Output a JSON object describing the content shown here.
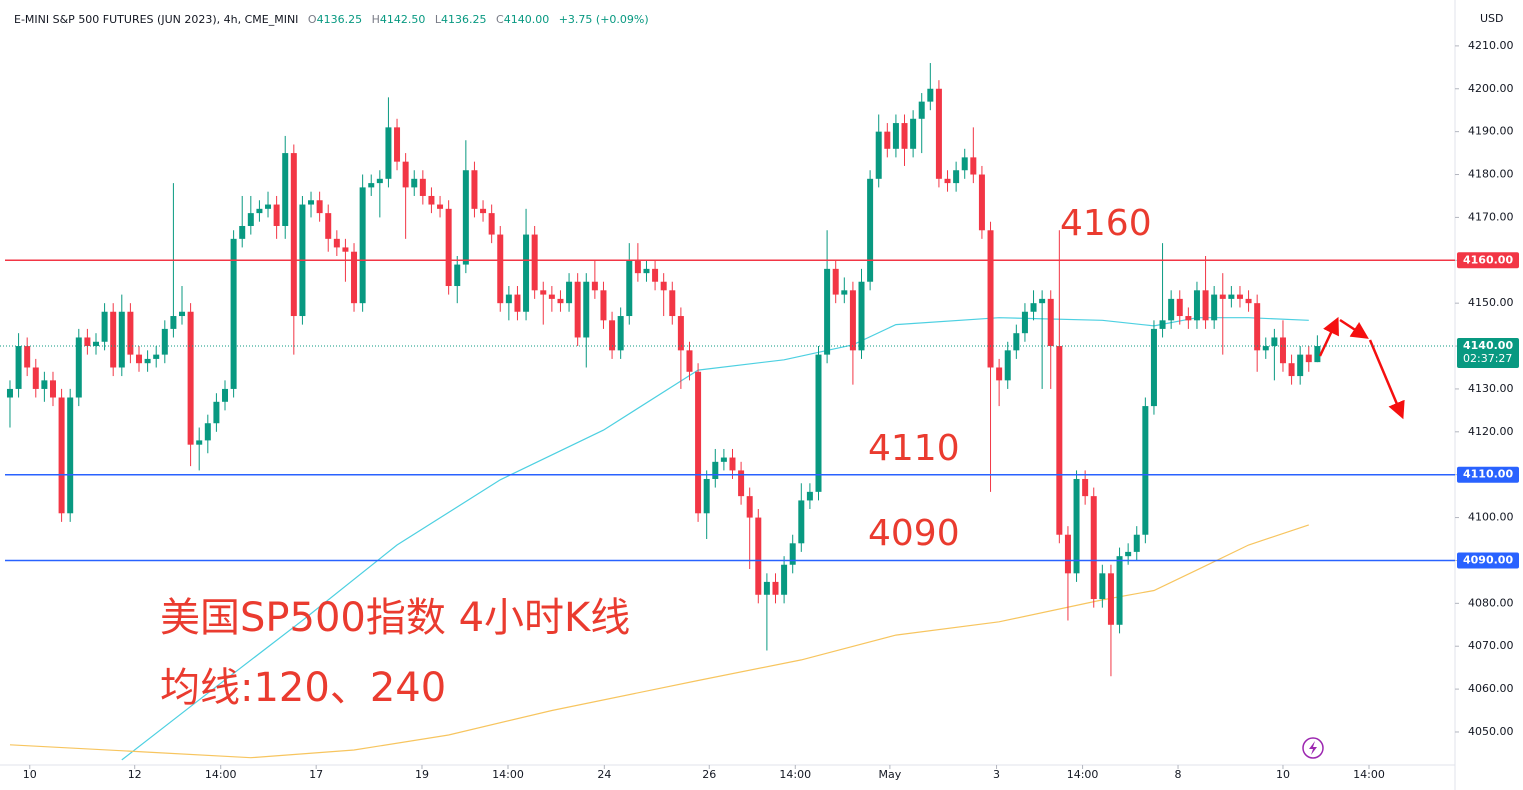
{
  "chart_data": {
    "type": "candlestick",
    "header": {
      "title": "E-MINI S&P 500 FUTURES (JUN 2023), 4h, CME_MINI",
      "ohlc": [
        {
          "label": "O",
          "value": "4136.25"
        },
        {
          "label": "H",
          "value": "4142.50"
        },
        {
          "label": "L",
          "value": "4136.25"
        },
        {
          "label": "C",
          "value": "4140.00"
        }
      ],
      "change": "+3.75 (+0.09%)"
    },
    "currency": "USD",
    "up_color": "#089981",
    "down_color": "#f23645",
    "open": [
      4128,
      4130,
      4140,
      4135,
      4130,
      4132,
      4128,
      4101,
      4128,
      4142,
      4140,
      4141,
      4148,
      4135,
      4148,
      4138,
      4136,
      4137,
      4138,
      4144,
      4147,
      4148,
      4117,
      4118,
      4122,
      4127,
      4130,
      4165,
      4168,
      4171,
      4172,
      4173,
      4168,
      4185,
      4147,
      4173,
      4174,
      4171,
      4165,
      4163,
      4162,
      4150,
      4177,
      4178,
      4179,
      4191,
      4183,
      4177,
      4179,
      4175,
      4173,
      4172,
      4154,
      4159,
      4181,
      4172,
      4171,
      4166,
      4150,
      4152,
      4148,
      4166,
      4153,
      4152,
      4151,
      4150,
      4155,
      4142,
      4155,
      4153,
      4146,
      4139,
      4147,
      4160,
      4157,
      4158,
      4155,
      4153,
      4147,
      4139,
      4134,
      4101,
      4109,
      4113,
      4114,
      4111,
      4105,
      4100,
      4082,
      4085,
      4082,
      4089,
      4094,
      4104,
      4106,
      4138,
      4158,
      4152,
      4153,
      4139,
      4155,
      4179,
      4190,
      4186,
      4192,
      4186,
      4193,
      4197,
      4200,
      4179,
      4178,
      4181,
      4184,
      4180,
      4167,
      4135,
      4132,
      4139,
      4143,
      4148,
      4150,
      4151,
      4140,
      4096,
      4087,
      4109,
      4105,
      4081,
      4087,
      4075,
      4091,
      4092,
      4096,
      4126,
      4144,
      4146,
      4151,
      4147,
      4146,
      4153,
      4146,
      4152,
      4151,
      4152,
      4151,
      4150,
      4139,
      4140,
      4142,
      4136,
      4133,
      4138,
      4136.25
    ],
    "high": [
      4132,
      4143,
      4142,
      4137,
      4134,
      4134,
      4130,
      4130,
      4144,
      4144,
      4143,
      4150,
      4150,
      4152,
      4150,
      4140,
      4139,
      4140,
      4146,
      4178,
      4154,
      4150,
      4121,
      4124,
      4129,
      4132,
      4167,
      4175,
      4175,
      4174,
      4176,
      4175,
      4189,
      4187,
      4175,
      4176,
      4176,
      4173,
      4167,
      4165,
      4164,
      4180,
      4180,
      4181,
      4198,
      4193,
      4185,
      4181,
      4181,
      4177,
      4175,
      4174,
      4161,
      4188,
      4183,
      4174,
      4173,
      4168,
      4154,
      4154,
      4172,
      4168,
      4155,
      4154,
      4153,
      4157,
      4157,
      4157,
      4160,
      4155,
      4148,
      4149,
      4164,
      4164,
      4160,
      4160,
      4157,
      4155,
      4149,
      4141,
      4136,
      4111,
      4116,
      4116,
      4116,
      4113,
      4107,
      4102,
      4087,
      4087,
      4091,
      4096,
      4108,
      4108,
      4140,
      4167,
      4160,
      4156,
      4155,
      4158,
      4181,
      4194,
      4192,
      4194,
      4194,
      4195,
      4199,
      4206,
      4202,
      4181,
      4183,
      4186,
      4191,
      4182,
      4169,
      4137,
      4141,
      4145,
      4150,
      4153,
      4153,
      4153,
      4167,
      4098,
      4111,
      4111,
      4107,
      4089,
      4089,
      4093,
      4094,
      4098,
      4128,
      4146,
      4164,
      4153,
      4153,
      4149,
      4155,
      4161,
      4154,
      4157,
      4154,
      4154,
      4153,
      4152,
      4142,
      4144,
      4146,
      4138,
      4140,
      4140,
      4142.5
    ],
    "low": [
      4121,
      4128,
      4133,
      4128,
      4127,
      4126,
      4099,
      4099,
      4126,
      4138,
      4138,
      4139,
      4133,
      4133,
      4136,
      4134,
      4134,
      4135,
      4136,
      4142,
      4145,
      4112,
      4111,
      4115,
      4120,
      4125,
      4128,
      4163,
      4166,
      4169,
      4170,
      4165,
      4165,
      4138,
      4145,
      4170,
      4169,
      4162,
      4161,
      4155,
      4148,
      4148,
      4175,
      4170,
      4177,
      4181,
      4165,
      4175,
      4173,
      4171,
      4170,
      4152,
      4150,
      4157,
      4170,
      4169,
      4164,
      4148,
      4146,
      4146,
      4146,
      4151,
      4145,
      4148,
      4148,
      4148,
      4140,
      4135,
      4151,
      4144,
      4137,
      4137,
      4145,
      4155,
      4155,
      4153,
      4147,
      4145,
      4130,
      4132,
      4099,
      4095,
      4107,
      4111,
      4109,
      4103,
      4088,
      4080,
      4069,
      4080,
      4080,
      4087,
      4092,
      4102,
      4104,
      4136,
      4150,
      4150,
      4131,
      4137,
      4153,
      4177,
      4184,
      4184,
      4182,
      4184,
      4185,
      4195,
      4177,
      4176,
      4176,
      4179,
      4178,
      4165,
      4106,
      4126,
      4130,
      4137,
      4141,
      4146,
      4130,
      4130,
      4094,
      4076,
      4085,
      4103,
      4079,
      4079,
      4063,
      4073,
      4089,
      4090,
      4094,
      4124,
      4142,
      4144,
      4145,
      4144,
      4144,
      4144,
      4144,
      4138,
      4149,
      4149,
      4148,
      4134,
      4137,
      4132,
      4134,
      4131,
      4131,
      4134,
      4136.25
    ],
    "close": [
      4130,
      4140,
      4135,
      4130,
      4132,
      4128,
      4101,
      4128,
      4142,
      4140,
      4141,
      4148,
      4135,
      4148,
      4138,
      4136,
      4137,
      4138,
      4144,
      4147,
      4148,
      4117,
      4118,
      4122,
      4127,
      4130,
      4165,
      4168,
      4171,
      4172,
      4173,
      4168,
      4185,
      4147,
      4173,
      4174,
      4171,
      4165,
      4163,
      4162,
      4150,
      4177,
      4178,
      4179,
      4191,
      4183,
      4177,
      4179,
      4175,
      4173,
      4172,
      4154,
      4159,
      4181,
      4172,
      4171,
      4166,
      4150,
      4152,
      4148,
      4166,
      4153,
      4152,
      4151,
      4150,
      4155,
      4142,
      4155,
      4153,
      4146,
      4139,
      4147,
      4160,
      4157,
      4158,
      4155,
      4153,
      4147,
      4139,
      4134,
      4101,
      4109,
      4113,
      4114,
      4111,
      4105,
      4100,
      4082,
      4085,
      4082,
      4089,
      4094,
      4104,
      4106,
      4138,
      4158,
      4152,
      4153,
      4139,
      4155,
      4179,
      4190,
      4186,
      4192,
      4186,
      4193,
      4197,
      4200,
      4179,
      4178,
      4181,
      4184,
      4180,
      4167,
      4135,
      4132,
      4139,
      4143,
      4148,
      4150,
      4151,
      4140,
      4096,
      4087,
      4109,
      4105,
      4081,
      4087,
      4075,
      4091,
      4092,
      4096,
      4126,
      4144,
      4146,
      4151,
      4147,
      4146,
      4153,
      4146,
      4152,
      4151,
      4152,
      4151,
      4150,
      4139,
      4140,
      4142,
      4136,
      4133,
      4138,
      4136.25,
      4140
    ],
    "moving_averages": [
      {
        "color": "#4dd0e1",
        "x": [
          13,
          22,
          34,
          45,
          57,
          69,
          80,
          90,
          98,
          103,
          115,
          127,
          133,
          138,
          144,
          151
        ],
        "values": [
          4043.5,
          4057.5,
          4076,
          4093.6,
          4108.8,
          4120.4,
          4134.4,
          4136.8,
          4140.3,
          4145,
          4146.6,
          4146,
          4144.7,
          4146.6,
          4146.6,
          4146
        ]
      },
      {
        "color": "#f7c55f",
        "x": [
          0,
          16,
          28,
          40,
          51,
          63,
          80,
          92,
          103,
          115,
          127,
          133,
          138,
          144,
          151
        ],
        "values": [
          4047,
          4045.3,
          4044,
          4045.8,
          4049.3,
          4055,
          4062,
          4066.8,
          4072.6,
          4075.7,
          4080.8,
          4083,
          4087.8,
          4093.6,
          4098.3
        ]
      }
    ],
    "hlines": [
      {
        "value": 4160,
        "label": "4160.00",
        "color": "#f23645"
      },
      {
        "value": 4110,
        "label": "4110.00",
        "color": "#2962ff"
      },
      {
        "value": 4090,
        "label": "4090.00",
        "color": "#2962ff"
      }
    ],
    "last_price": {
      "value": 4140,
      "label": "4140.00",
      "countdown": "02:37:27",
      "color": "#089981"
    },
    "xlim": [
      -1.16,
      168
    ],
    "ylim": [
      4042.3,
      4220.7
    ],
    "yticks": [
      {
        "value": 4050,
        "label": "4050.00"
      },
      {
        "value": 4060,
        "label": "4060.00"
      },
      {
        "value": 4070,
        "label": "4070.00"
      },
      {
        "value": 4080,
        "label": "4080.00"
      },
      {
        "value": 4090,
        "label": "4090.00"
      },
      {
        "value": 4100,
        "label": "4100.00"
      },
      {
        "value": 4110,
        "label": "4110.00"
      },
      {
        "value": 4120,
        "label": "4120.00"
      },
      {
        "value": 4130,
        "label": "4130.00"
      },
      {
        "value": 4140,
        "label": "4140.00"
      },
      {
        "value": 4150,
        "label": "4150.00"
      },
      {
        "value": 4160,
        "label": "4160.00"
      },
      {
        "value": 4170,
        "label": "4170.00"
      },
      {
        "value": 4180,
        "label": "4180.00"
      },
      {
        "value": 4190,
        "label": "4190.00"
      },
      {
        "value": 4200,
        "label": "4200.00"
      },
      {
        "value": 4210,
        "label": "4210.00"
      }
    ],
    "xticks": [
      {
        "value": 2.3,
        "label": "10"
      },
      {
        "value": 14.5,
        "label": "12"
      },
      {
        "value": 24.5,
        "label": "14:00"
      },
      {
        "value": 35.6,
        "label": "17"
      },
      {
        "value": 47.9,
        "label": "19"
      },
      {
        "value": 57.9,
        "label": "14:00"
      },
      {
        "value": 69.1,
        "label": "24"
      },
      {
        "value": 81.3,
        "label": "26"
      },
      {
        "value": 91.3,
        "label": "14:00"
      },
      {
        "value": 102.3,
        "label": "May"
      },
      {
        "value": 114.7,
        "label": "3"
      },
      {
        "value": 124.7,
        "label": "14:00"
      },
      {
        "value": 135.8,
        "label": "8"
      },
      {
        "value": 148,
        "label": "10"
      },
      {
        "value": 158,
        "label": "14:00"
      }
    ],
    "annotations": [
      "4160",
      "4110",
      "4090",
      "美国SP500指数 4小时K线",
      "均线:120、240"
    ]
  }
}
